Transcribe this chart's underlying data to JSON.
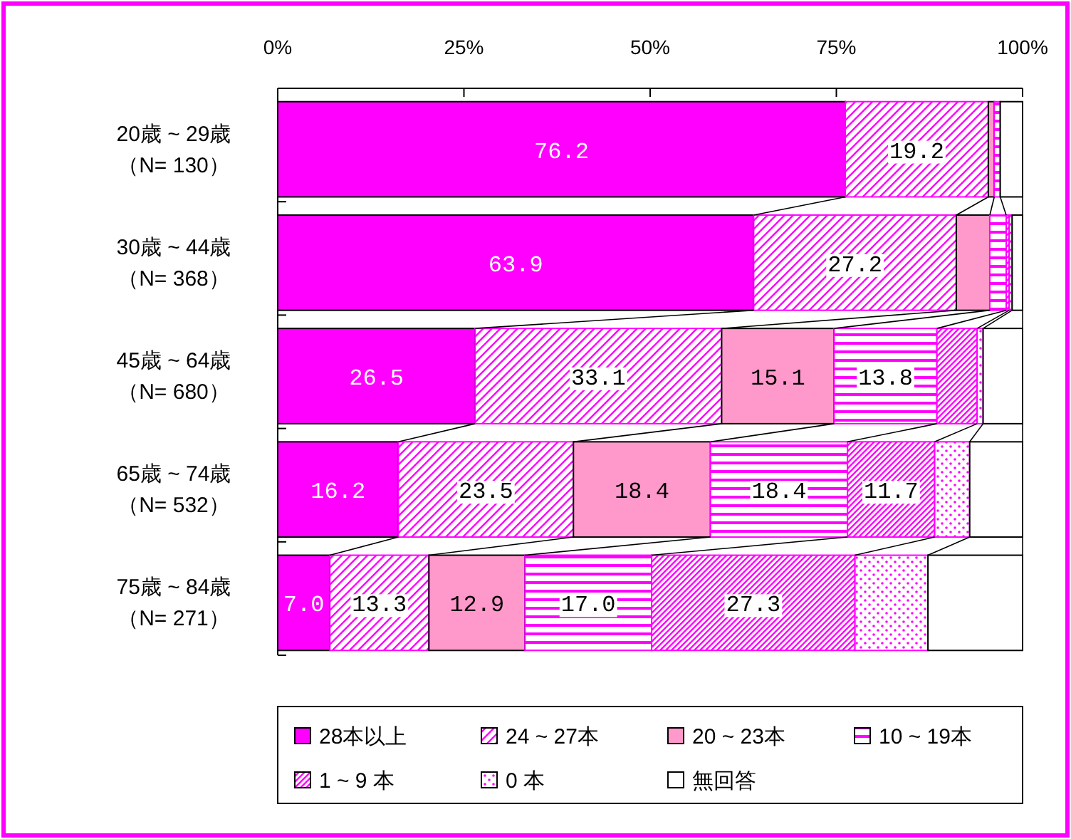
{
  "chart_data": {
    "type": "bar",
    "orientation": "horizontal",
    "stacked": true,
    "categories": [
      "20歳 ~ 29歳（N= 130）",
      "30歳 ~ 44歳（N= 368）",
      "45歳 ~ 64歳（N= 680）",
      "65歳 ~ 74歳（N= 532）",
      "75歳 ~ 84歳（N= 271）"
    ],
    "series": [
      {
        "name": "28本以上",
        "color": "#ff00ff",
        "values": [
          76.2,
          63.9,
          26.5,
          16.2,
          7.0
        ],
        "value_labels": [
          "76.2",
          "63.9",
          "26.5",
          "16.2",
          "7.0"
        ]
      },
      {
        "name": "24 ~ 27本",
        "color": "#ff00ff",
        "values": [
          19.2,
          27.2,
          33.1,
          23.5,
          13.3
        ],
        "value_labels": [
          "19.2",
          "27.2",
          "33.1",
          "23.5",
          "13.3"
        ]
      },
      {
        "name": "20 ~ 23本",
        "color": "#ff99cc",
        "values": [
          0.8,
          4.5,
          15.1,
          18.4,
          12.9
        ],
        "value_labels": [
          null,
          null,
          "15.1",
          "18.4",
          "12.9"
        ]
      },
      {
        "name": "10 ~ 19本",
        "color": "#ff00ff",
        "values": [
          0.8,
          2.2,
          13.8,
          18.4,
          17.0
        ],
        "value_labels": [
          null,
          null,
          "13.8",
          "18.4",
          "17.0"
        ]
      },
      {
        "name": "1 ~ 9 本",
        "color": "#ff00ff",
        "values": [
          0.0,
          0.4,
          5.4,
          11.7,
          27.3
        ],
        "value_labels": [
          null,
          null,
          null,
          "11.7",
          "27.3"
        ]
      },
      {
        "name": "0 本",
        "color": "#ff00ff",
        "values": [
          0.0,
          0.4,
          0.8,
          4.7,
          9.8
        ]
      },
      {
        "name": "無回答",
        "color": "#ffffff",
        "values": [
          3.0,
          1.4,
          5.3,
          7.1,
          12.7
        ]
      }
    ],
    "xlim": [
      0,
      100
    ],
    "xticks": [
      {
        "value": 0,
        "label": "0%"
      },
      {
        "value": 25,
        "label": "25%"
      },
      {
        "value": 50,
        "label": "50%"
      },
      {
        "value": 75,
        "label": "75%"
      },
      {
        "value": 100,
        "label": "100%"
      }
    ],
    "legend": "bottom"
  }
}
